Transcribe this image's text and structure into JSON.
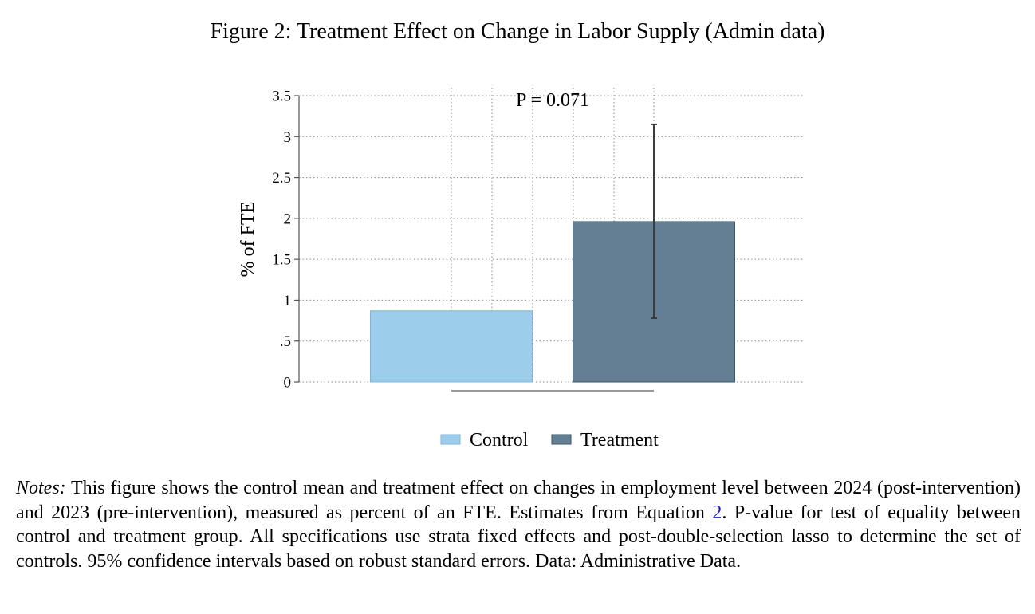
{
  "figure": {
    "title": "Figure 2: Treatment Effect on Change in Labor Supply (Admin data)"
  },
  "chart_data": {
    "type": "bar",
    "categories": [
      "Control",
      "Treatment"
    ],
    "values": [
      0.87,
      1.96
    ],
    "errors": [
      null,
      [
        0.78,
        3.15
      ]
    ],
    "colors": [
      "#9ccdeb",
      "#647f93"
    ],
    "ylabel": "% of FTE",
    "ylim": [
      0,
      3.5
    ],
    "yticks": [
      0,
      0.5,
      1,
      1.5,
      2,
      2.5,
      3,
      3.5
    ],
    "ytick_labels": [
      "0",
      ".5",
      "1",
      "1.5",
      "2",
      "2.5",
      "3",
      "3.5"
    ],
    "annotation": "P = 0.071",
    "legend": [
      "Control",
      "Treatment"
    ],
    "legend_position": "bottom",
    "grid": true
  },
  "notes": {
    "label": "Notes:",
    "text_before_ref": " This figure shows the control mean and treatment effect on changes in employment level between 2024 (post-intervention) and 2023 (pre-intervention), measured as percent of an FTE. Estimates from Equation ",
    "ref": "2",
    "text_after_ref": ". P-value for test of equality between control and treatment group. All specifications use strata fixed effects and post-double-selection lasso to determine the set of controls. 95% confidence intervals based on robust standard errors. Data: Administrative Data."
  }
}
